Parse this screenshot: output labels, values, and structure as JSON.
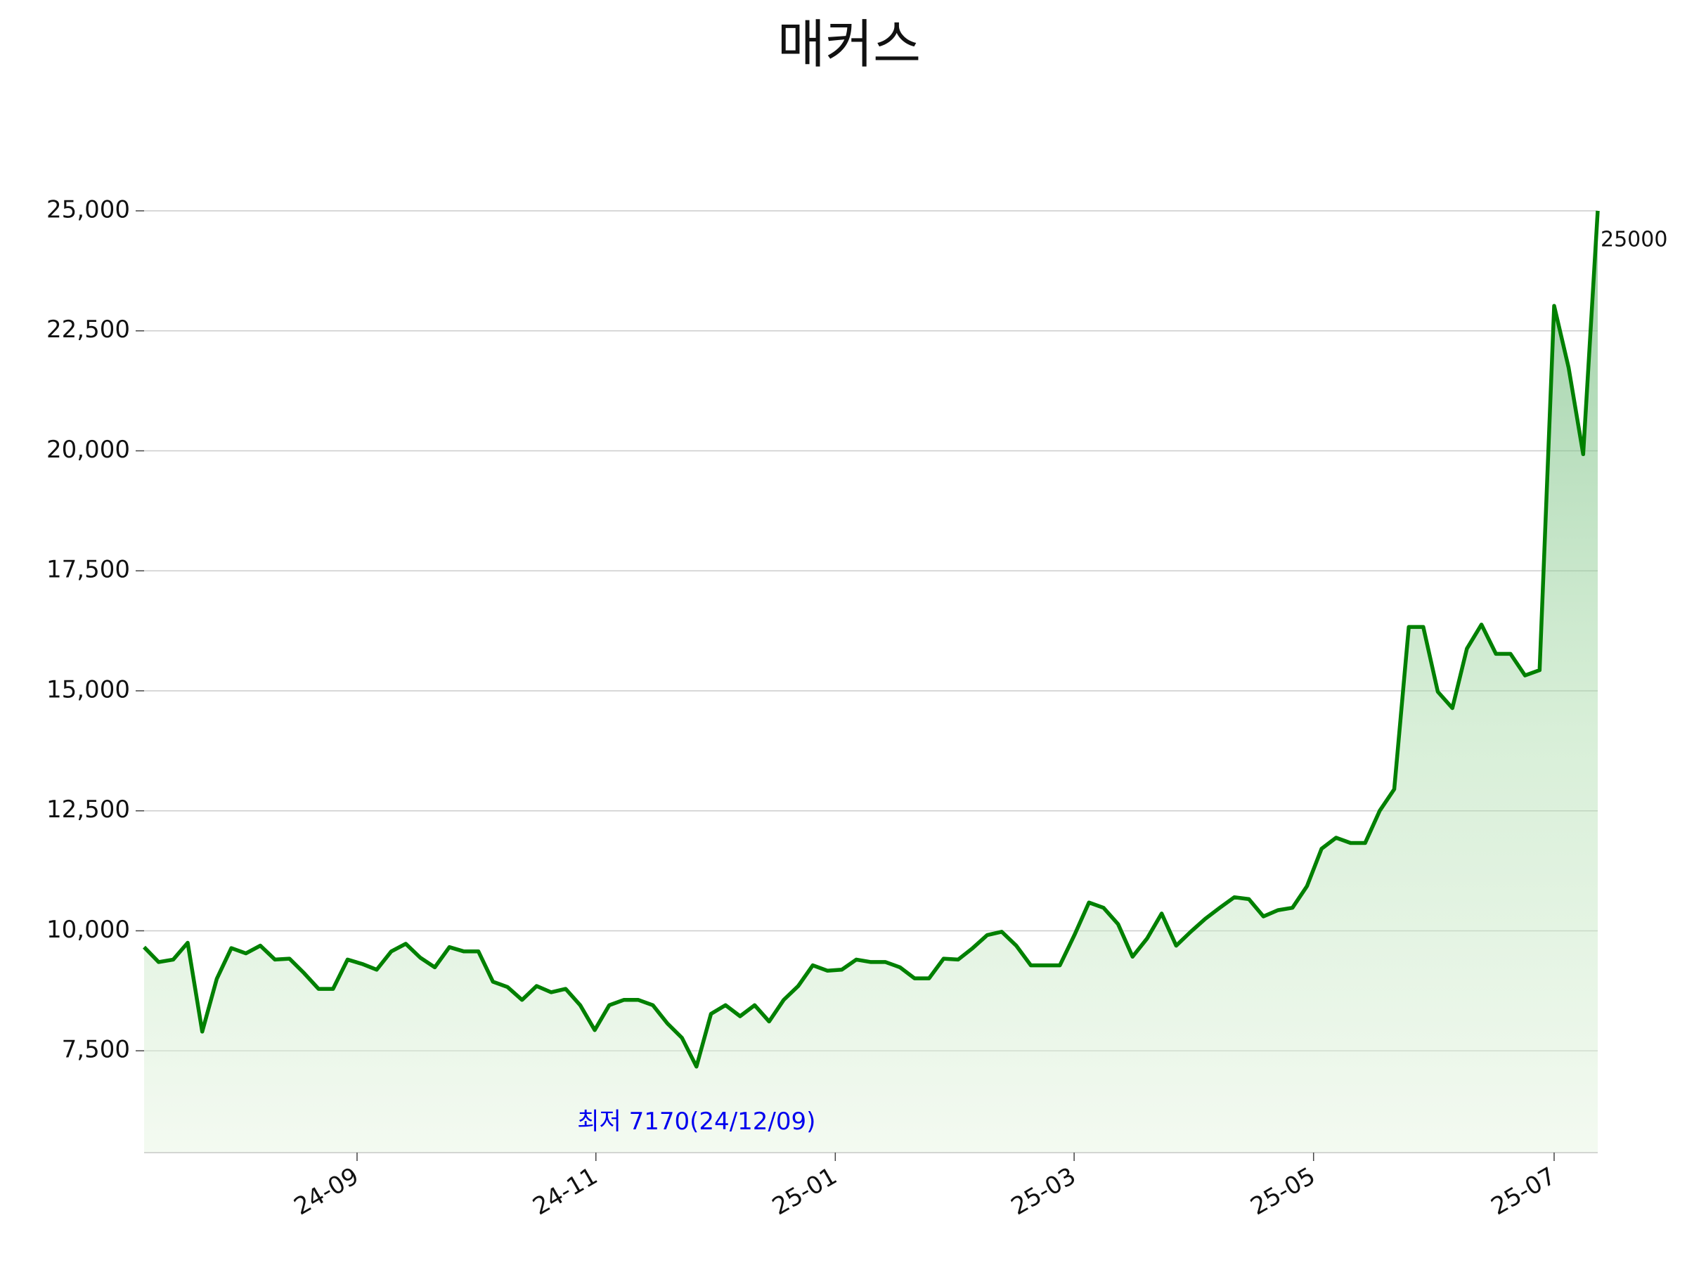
{
  "chart_data": {
    "type": "line",
    "title": "매커스",
    "color": "#008000",
    "values": [
      9660,
      9350,
      9400,
      9750,
      7900,
      9000,
      9640,
      9530,
      9690,
      9400,
      9420,
      9120,
      8790,
      8790,
      9400,
      9310,
      9190,
      9570,
      9730,
      9440,
      9240,
      9660,
      9570,
      9570,
      8940,
      8830,
      8560,
      8850,
      8720,
      8790,
      8450,
      7930,
      8450,
      8560,
      8560,
      8450,
      8070,
      7770,
      7170,
      8270,
      8450,
      8220,
      8450,
      8110,
      8560,
      8850,
      9280,
      9170,
      9190,
      9400,
      9350,
      9350,
      9240,
      9010,
      9010,
      9420,
      9400,
      9640,
      9910,
      9980,
      9690,
      9280,
      9280,
      9280,
      9910,
      10590,
      10480,
      10140,
      9460,
      9840,
      10360,
      9690,
      9980,
      10250,
      10480,
      10700,
      10660,
      10300,
      10430,
      10480,
      10930,
      11710,
      11940,
      11830,
      11830,
      12500,
      12950,
      16330,
      16330,
      14980,
      14640,
      15880,
      16380,
      15770,
      15770,
      15320,
      15430,
      23020,
      21730,
      19930,
      25000
    ],
    "xlim": [
      0,
      100
    ],
    "xticks": [
      {
        "value": 14.65,
        "label": "24-09"
      },
      {
        "value": 31.08,
        "label": "24-11"
      },
      {
        "value": 47.55,
        "label": "25-01"
      },
      {
        "value": 63.98,
        "label": "25-03"
      },
      {
        "value": 80.45,
        "label": "25-05"
      },
      {
        "value": 97.0,
        "label": "25-07"
      }
    ],
    "ylim": [
      5380,
      25000
    ],
    "yticks": [
      {
        "value": 7500,
        "label": "7,500"
      },
      {
        "value": 10000,
        "label": "10,000"
      },
      {
        "value": 12500,
        "label": "12,500"
      },
      {
        "value": 15000,
        "label": "15,000"
      },
      {
        "value": 17500,
        "label": "17,500"
      },
      {
        "value": 20000,
        "label": "20,000"
      },
      {
        "value": 22500,
        "label": "22,500"
      },
      {
        "value": 25000,
        "label": "25,000"
      }
    ],
    "grid": true,
    "min_label": "최저 7170(24/12/09)"
  }
}
